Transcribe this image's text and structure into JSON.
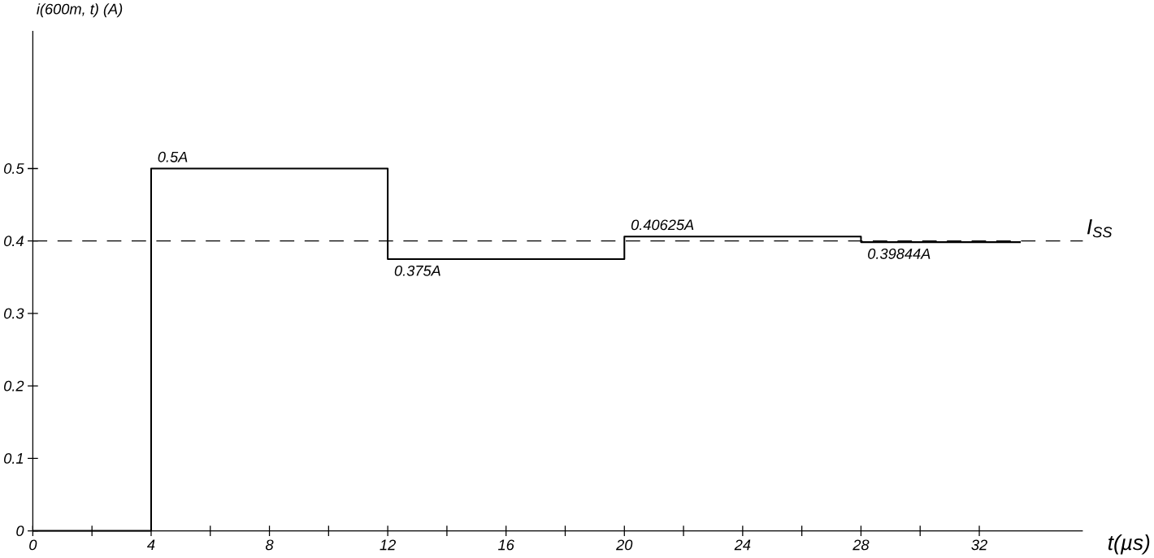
{
  "chart_data": {
    "type": "step",
    "xlabel": "t(µs)",
    "ylabel": "i(600m, t) (A)",
    "x": [
      0,
      4,
      12,
      20,
      28,
      33.4
    ],
    "series": [
      {
        "color": "#000000",
        "values": [
          0,
          0.5,
          0.375,
          0.40625,
          0.39844,
          0.39844
        ],
        "value_labels": [
          null,
          "0.5A",
          "0.375A",
          "0.40625A",
          "0.39844A",
          null
        ]
      }
    ],
    "xlim": [
      0,
      35.5
    ],
    "ylim": [
      0,
      0.69
    ],
    "xticks": [
      0,
      {
        "value": 2,
        "label": null
      },
      4,
      {
        "value": 6,
        "label": null
      },
      8,
      {
        "value": 10,
        "label": null
      },
      12,
      {
        "value": 14,
        "label": null
      },
      16,
      {
        "value": 18,
        "label": null
      },
      20,
      {
        "value": 22,
        "label": null
      },
      24,
      {
        "value": 26,
        "label": null
      },
      28,
      {
        "value": 30,
        "label": null
      },
      32
    ],
    "yticks": [
      0,
      0.1,
      0.2,
      0.3,
      0.4,
      0.5
    ],
    "ref_lines": [
      {
        "axis": "y",
        "value": 0.4,
        "label": "I$_{SS}$",
        "line_style": "dashed",
        "color": "#000000"
      }
    ],
    "grid": false
  }
}
